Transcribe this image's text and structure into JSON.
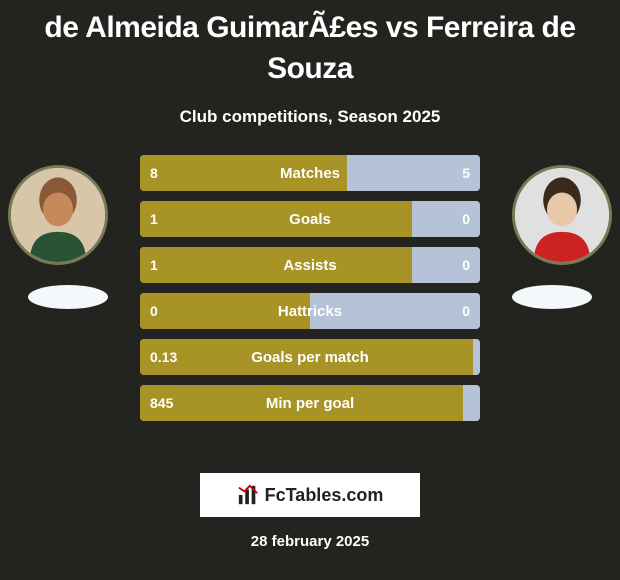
{
  "colors": {
    "background": "#232320",
    "bar_main": "#a79326",
    "bar_secondary": "#b6c2d8",
    "title_color": "#ffffff",
    "text_color": "#ffffff",
    "badge_color": "#f5f8fb",
    "logo_bg": "#ffffff",
    "logo_text": "#222222"
  },
  "title": "de Almeida GuimarÃ£es vs Ferreira de Souza",
  "subtitle": "Club competitions, Season 2025",
  "players": {
    "left": {
      "name": "de Almeida Guimarães"
    },
    "right": {
      "name": "Ferreira de Souza"
    }
  },
  "stats": {
    "rows": [
      {
        "label": "Matches",
        "left": "8",
        "right": "5",
        "left_pct": 61,
        "right_pct": 39
      },
      {
        "label": "Goals",
        "left": "1",
        "right": "0",
        "left_pct": 80,
        "right_pct": 20
      },
      {
        "label": "Assists",
        "left": "1",
        "right": "0",
        "left_pct": 80,
        "right_pct": 20
      },
      {
        "label": "Hattricks",
        "left": "0",
        "right": "0",
        "left_pct": 50,
        "right_pct": 50
      },
      {
        "label": "Goals per match",
        "left": "0.13",
        "right": "",
        "left_pct": 98,
        "right_pct": 2
      },
      {
        "label": "Min per goal",
        "left": "845",
        "right": "",
        "left_pct": 95,
        "right_pct": 5
      }
    ]
  },
  "footer": {
    "logo_text": "FcTables.com",
    "date": "28 february 2025"
  },
  "typography": {
    "title_fontsize": 30,
    "subtitle_fontsize": 17,
    "row_label_fontsize": 15,
    "row_value_fontsize": 14,
    "date_fontsize": 15
  }
}
